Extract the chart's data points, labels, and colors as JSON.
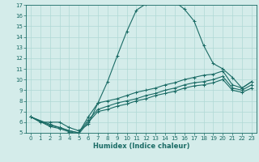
{
  "title": "",
  "xlabel": "Humidex (Indice chaleur)",
  "xlim": [
    -0.5,
    23.5
  ],
  "ylim": [
    5,
    17
  ],
  "yticks": [
    5,
    6,
    7,
    8,
    9,
    10,
    11,
    12,
    13,
    14,
    15,
    16,
    17
  ],
  "xticks": [
    0,
    1,
    2,
    3,
    4,
    5,
    6,
    7,
    8,
    9,
    10,
    11,
    12,
    13,
    14,
    15,
    16,
    17,
    18,
    19,
    20,
    21,
    22,
    23
  ],
  "bg_color": "#d4ecea",
  "grid_color": "#b0d8d5",
  "line_color": "#1a6b65",
  "lines": [
    {
      "x": [
        0,
        1,
        2,
        3,
        4,
        5,
        6,
        7,
        8,
        9,
        10,
        11,
        12,
        13,
        14,
        15,
        16,
        17,
        18,
        19,
        20,
        21,
        22,
        23
      ],
      "y": [
        6.5,
        6.0,
        6.0,
        6.0,
        5.5,
        5.2,
        5.8,
        7.8,
        9.8,
        12.2,
        14.5,
        16.5,
        17.1,
        17.3,
        17.3,
        17.3,
        16.6,
        15.5,
        13.2,
        11.5,
        11.0,
        10.2,
        9.2,
        9.8
      ]
    },
    {
      "x": [
        0,
        2,
        3,
        4,
        5,
        6,
        7,
        8,
        9,
        10,
        11,
        12,
        13,
        14,
        15,
        16,
        17,
        18,
        19,
        20,
        21,
        22,
        23
      ],
      "y": [
        6.5,
        5.8,
        5.5,
        5.2,
        5.0,
        6.5,
        7.8,
        8.0,
        8.2,
        8.5,
        8.8,
        9.0,
        9.2,
        9.5,
        9.7,
        10.0,
        10.2,
        10.4,
        10.5,
        10.8,
        9.5,
        9.2,
        9.8
      ]
    },
    {
      "x": [
        0,
        2,
        3,
        4,
        5,
        6,
        7,
        8,
        9,
        10,
        11,
        12,
        13,
        14,
        15,
        16,
        17,
        18,
        19,
        20,
        21,
        22,
        23
      ],
      "y": [
        6.5,
        5.7,
        5.5,
        5.2,
        5.0,
        6.2,
        7.2,
        7.5,
        7.8,
        8.0,
        8.2,
        8.5,
        8.7,
        9.0,
        9.2,
        9.5,
        9.7,
        9.8,
        10.0,
        10.3,
        9.2,
        9.0,
        9.5
      ]
    },
    {
      "x": [
        0,
        2,
        3,
        4,
        5,
        6,
        7,
        8,
        9,
        10,
        11,
        12,
        13,
        14,
        15,
        16,
        17,
        18,
        19,
        20,
        21,
        22,
        23
      ],
      "y": [
        6.5,
        5.6,
        5.4,
        5.1,
        4.9,
        6.0,
        7.0,
        7.2,
        7.5,
        7.7,
        8.0,
        8.2,
        8.5,
        8.7,
        8.9,
        9.2,
        9.4,
        9.5,
        9.7,
        10.0,
        9.0,
        8.8,
        9.2
      ]
    }
  ]
}
